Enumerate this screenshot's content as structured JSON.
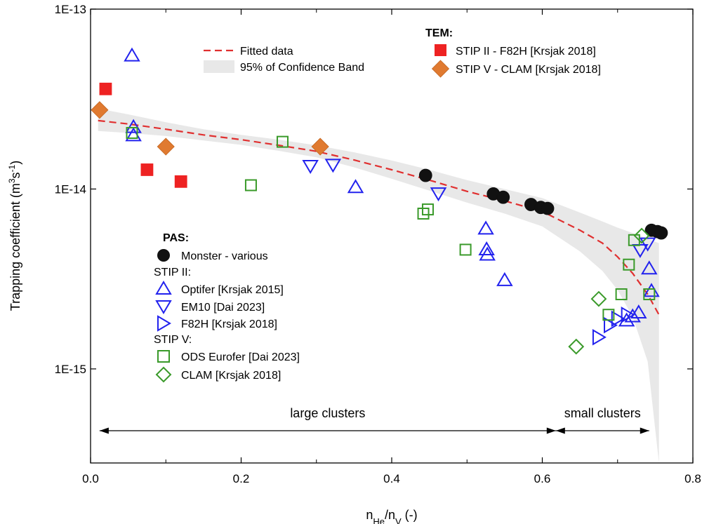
{
  "chart_data": {
    "type": "scatter",
    "x": {
      "label_main": "n",
      "label_sub1": "He",
      "label_mid": "/n",
      "label_sub2": "V",
      "label_unit": " (-)",
      "range": [
        0,
        0.8
      ],
      "ticks": [
        0.0,
        0.2,
        0.4,
        0.6,
        0.8
      ],
      "tick_labels": [
        "0.0",
        "0.2",
        "0.4",
        "0.6",
        "0.8"
      ]
    },
    "y": {
      "label_pre": "Trapping coefficient (m",
      "label_sup1": "3",
      "label_mid": "s",
      "label_sup2": "-1",
      "label_post": ")",
      "scale": "log",
      "range": [
        3e-16,
        1e-13
      ],
      "ticks": [
        1e-15,
        1e-14,
        1e-13
      ],
      "tick_labels": [
        "1E-15",
        "1E-14",
        "1E-13"
      ]
    },
    "fit": {
      "name": "Fitted data",
      "x": [
        0.01,
        0.05,
        0.1,
        0.15,
        0.2,
        0.25,
        0.3,
        0.35,
        0.4,
        0.45,
        0.5,
        0.55,
        0.6,
        0.65,
        0.68,
        0.7,
        0.72,
        0.74,
        0.755
      ],
      "y": [
        2.4e-14,
        2.3e-14,
        2.15e-14,
        2e-14,
        1.88e-14,
        1.75e-14,
        1.62e-14,
        1.45e-14,
        1.28e-14,
        1.12e-14,
        9.7e-15,
        8.6e-15,
        7.5e-15,
        5.9e-15,
        5e-15,
        4.2e-15,
        3.4e-15,
        2.6e-15,
        2e-15
      ]
    },
    "confidence_band": {
      "name": "95% of Confidence Band",
      "x": [
        0.01,
        0.05,
        0.1,
        0.15,
        0.2,
        0.25,
        0.3,
        0.35,
        0.4,
        0.45,
        0.5,
        0.55,
        0.6,
        0.65,
        0.68,
        0.7,
        0.72,
        0.74,
        0.755
      ],
      "upper": [
        2.8e-14,
        2.6e-14,
        2.35e-14,
        2.15e-14,
        2e-14,
        1.88e-14,
        1.75e-14,
        1.6e-14,
        1.44e-14,
        1.28e-14,
        1.12e-14,
        1e-14,
        8.9e-15,
        7.4e-15,
        6.6e-15,
        6.1e-15,
        5.7e-15,
        5.3e-15,
        5e-15
      ],
      "lower": [
        2.1e-14,
        2.05e-14,
        1.97e-14,
        1.86e-14,
        1.76e-14,
        1.63e-14,
        1.5e-14,
        1.32e-14,
        1.14e-14,
        9.8e-15,
        8.4e-15,
        7.3e-15,
        6.2e-15,
        4.5e-15,
        3.5e-15,
        2.75e-15,
        1.95e-15,
        1.1e-15,
        3e-16
      ]
    },
    "series": [
      {
        "name": "STIP II - F82H [Krsjak 2018]",
        "group": "TEM",
        "marker": "square",
        "filled": true,
        "color": "#ee2222",
        "x": [
          0.02,
          0.075,
          0.12
        ],
        "y": [
          3.6e-14,
          1.28e-14,
          1.1e-14
        ]
      },
      {
        "name": "STIP V - CLAM [Krsjak 2018]",
        "group": "TEM",
        "marker": "diamond",
        "filled": true,
        "color": "#e07a30",
        "x": [
          0.012,
          0.1,
          0.305
        ],
        "y": [
          2.75e-14,
          1.72e-14,
          1.72e-14
        ]
      },
      {
        "name": "Monster - various",
        "group": "PAS",
        "marker": "circle",
        "filled": true,
        "color": "#111111",
        "x": [
          0.445,
          0.535,
          0.548,
          0.585,
          0.598,
          0.607,
          0.745,
          0.753,
          0.758
        ],
        "y": [
          1.19e-14,
          9.4e-15,
          9e-15,
          8.2e-15,
          7.9e-15,
          7.8e-15,
          5.9e-15,
          5.8e-15,
          5.7e-15
        ]
      },
      {
        "name": "Optifer [Krsjak 2015]",
        "group": "STIP II:",
        "marker": "triangle-up",
        "filled": false,
        "color": "#2222ee",
        "x": [
          0.055,
          0.057,
          0.057,
          0.352,
          0.525,
          0.526,
          0.527,
          0.55,
          0.712,
          0.72,
          0.728,
          0.742,
          0.745
        ],
        "y": [
          5.5e-14,
          2.2e-14,
          1.98e-14,
          1.02e-14,
          6e-15,
          4.6e-15,
          4.3e-15,
          3.1e-15,
          1.85e-15,
          1.95e-15,
          2.05e-15,
          3.6e-15,
          2.7e-15
        ]
      },
      {
        "name": "EM10 [Dai 2023]",
        "group": "STIP II:",
        "marker": "triangle-down",
        "filled": false,
        "color": "#2222ee",
        "x": [
          0.292,
          0.322,
          0.462,
          0.73,
          0.74
        ],
        "y": [
          1.35e-14,
          1.37e-14,
          9.5e-15,
          4.6e-15,
          5e-15
        ]
      },
      {
        "name": "F82H [Krsjak 2018]",
        "group": "STIP II:",
        "marker": "triangle-right",
        "filled": false,
        "color": "#2222ee",
        "x": [
          0.675,
          0.69,
          0.7,
          0.713
        ],
        "y": [
          1.5e-15,
          1.75e-15,
          1.9e-15,
          2e-15
        ]
      },
      {
        "name": "ODS Eurofer [Dai 2023]",
        "group": "STIP V:",
        "marker": "square",
        "filled": false,
        "color": "#3a9a2a",
        "x": [
          0.055,
          0.213,
          0.255,
          0.442,
          0.448,
          0.498,
          0.688,
          0.705,
          0.715,
          0.722,
          0.742
        ],
        "y": [
          2.05e-14,
          1.05e-14,
          1.83e-14,
          7.3e-15,
          7.7e-15,
          4.6e-15,
          2e-15,
          2.6e-15,
          3.8e-15,
          5.2e-15,
          2.6e-15
        ]
      },
      {
        "name": "CLAM [Krsjak 2018]",
        "group": "STIP V:",
        "marker": "diamond",
        "filled": false,
        "color": "#3a9a2a",
        "x": [
          0.645,
          0.675,
          0.732
        ],
        "y": [
          1.33e-15,
          2.45e-15,
          5.5e-15
        ]
      }
    ],
    "legend": {
      "top_fit": "Fitted data",
      "top_band": "95% of Confidence Band",
      "tem_header": "TEM:",
      "pas_header": "PAS:",
      "stip2_header": "STIP II:",
      "stip5_header": "STIP V:"
    },
    "regions": [
      {
        "label": "large clusters",
        "x_from": 0.012,
        "x_to": 0.618
      },
      {
        "label": "small clusters",
        "x_from": 0.618,
        "x_to": 0.742
      }
    ]
  }
}
